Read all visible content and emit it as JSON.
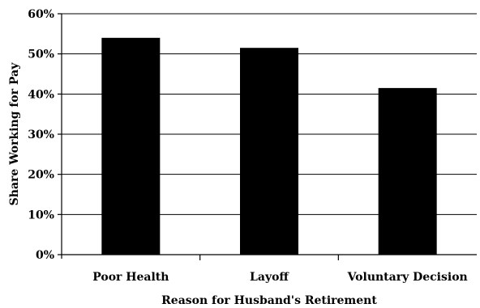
{
  "chart_data": {
    "type": "bar",
    "title": "",
    "xlabel": "Reason for Husband's Retirement",
    "ylabel": "Share Working for Pay",
    "categories": [
      "Poor Health",
      "Layoff",
      "Voluntary Decision"
    ],
    "values": [
      54,
      51.5,
      41.5
    ],
    "ylim": [
      0,
      60
    ],
    "yticks": [
      0,
      10,
      20,
      30,
      40,
      50,
      60
    ],
    "ytick_labels": [
      "0%",
      "10%",
      "20%",
      "30%",
      "40%",
      "50%",
      "60%"
    ],
    "grid": true,
    "bar_color": "#000000",
    "legend": "none"
  }
}
